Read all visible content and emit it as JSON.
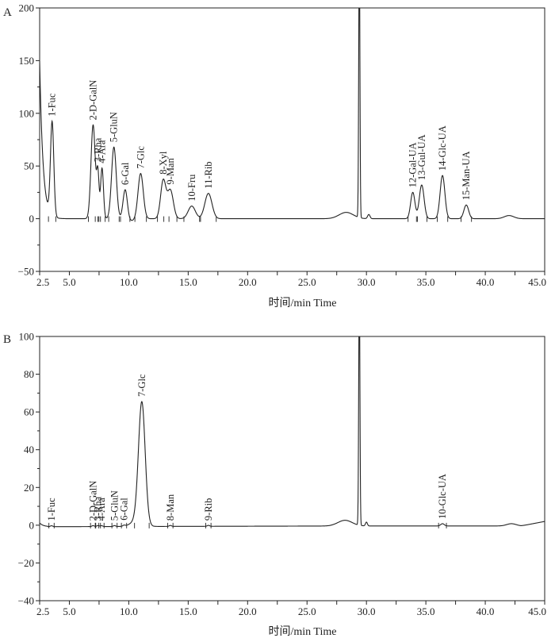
{
  "chart_data": [
    {
      "type": "line",
      "panel_label": "A",
      "xlabel": "时间/min Time",
      "xlim": [
        2.5,
        45.0
      ],
      "ylim": [
        -50,
        200
      ],
      "x_ticks": [
        2.5,
        5.0,
        7.5,
        10.0,
        12.5,
        15.0,
        17.5,
        20.0,
        22.5,
        25.0,
        27.5,
        30.0,
        32.5,
        35.0,
        37.5,
        40.0,
        42.5,
        45.0
      ],
      "x_tick_labels": [
        "2.5",
        "5.0",
        "",
        "10.0",
        "",
        "15.0",
        "",
        "20.0",
        "",
        "25.0",
        "",
        "30.0",
        "",
        "35.0",
        "",
        "40.0",
        "",
        "45.0"
      ],
      "y_ticks": [
        -50,
        0,
        50,
        100,
        150,
        200
      ],
      "y_tick_labels": [
        "−50",
        "0",
        "50",
        "100",
        "150",
        "200"
      ],
      "baseline": 0,
      "system_peak": {
        "x": 29.4,
        "y": 200,
        "width": 0.05
      },
      "peaks": [
        {
          "label": "1-Fuc",
          "x": 3.55,
          "y": 89,
          "width": 0.14
        },
        {
          "label": "2-D-GalN",
          "x": 7.0,
          "y": 89,
          "width": 0.18
        },
        {
          "label": "3-Rha",
          "x": 7.4,
          "y": 41,
          "width": 0.1
        },
        {
          "label": "4-Ara",
          "x": 7.75,
          "y": 48,
          "width": 0.12
        },
        {
          "label": "5-GluN",
          "x": 8.75,
          "y": 68,
          "width": 0.2
        },
        {
          "label": "6-Gal",
          "x": 9.7,
          "y": 28,
          "width": 0.18
        },
        {
          "label": "7-Glc",
          "x": 11.0,
          "y": 43,
          "width": 0.22
        },
        {
          "label": "8-Xyl",
          "x": 12.9,
          "y": 36,
          "width": 0.22
        },
        {
          "label": "9-Man",
          "x": 13.5,
          "y": 27,
          "width": 0.25
        },
        {
          "label": "10-Fru",
          "x": 15.3,
          "y": 12,
          "width": 0.3
        },
        {
          "label": "11-Rib",
          "x": 16.7,
          "y": 24,
          "width": 0.3
        },
        {
          "label": "12-Gal-UA",
          "x": 33.9,
          "y": 25,
          "width": 0.18
        },
        {
          "label": "13-Gul-UA",
          "x": 34.65,
          "y": 32,
          "width": 0.2
        },
        {
          "label": "14-Glc-UA",
          "x": 36.4,
          "y": 41,
          "width": 0.2
        },
        {
          "label": "15-Man-UA",
          "x": 38.4,
          "y": 13,
          "width": 0.2
        }
      ]
    },
    {
      "type": "line",
      "panel_label": "B",
      "xlabel": "时间/min Time",
      "xlim": [
        2.5,
        45.0
      ],
      "ylim": [
        -40,
        100
      ],
      "x_ticks": [
        2.5,
        5.0,
        7.5,
        10.0,
        12.5,
        15.0,
        17.5,
        20.0,
        22.5,
        25.0,
        27.5,
        30.0,
        32.5,
        35.0,
        37.5,
        40.0,
        42.5,
        45.0
      ],
      "x_tick_labels": [
        "2.5",
        "5.0",
        "",
        "10.0",
        "",
        "15.0",
        "",
        "20.0",
        "",
        "25.0",
        "",
        "30.0",
        "",
        "35.0",
        "",
        "40.0",
        "",
        "45.0"
      ],
      "y_ticks": [
        -40,
        -20,
        0,
        20,
        40,
        60,
        80,
        100
      ],
      "y_tick_labels": [
        "−40",
        "−20",
        "0",
        "20",
        "40",
        "60",
        "80",
        "100"
      ],
      "baseline": 0,
      "system_peak": {
        "x": 29.4,
        "y": 100,
        "width": 0.05
      },
      "peaks": [
        {
          "label": "1-Fuc",
          "x": 3.5,
          "y": 0.5,
          "width": 0.1
        },
        {
          "label": "2-D-GalN",
          "x": 7.0,
          "y": 0.5,
          "width": 0.1
        },
        {
          "label": "3-Rha",
          "x": 7.4,
          "y": 0.5,
          "width": 0.1
        },
        {
          "label": "4-Ara",
          "x": 7.7,
          "y": 0.5,
          "width": 0.1
        },
        {
          "label": "5-GluN",
          "x": 8.8,
          "y": 0.5,
          "width": 0.1
        },
        {
          "label": "6-Gal",
          "x": 9.6,
          "y": 0.5,
          "width": 0.1
        },
        {
          "label": "7-Glc",
          "x": 11.1,
          "y": 64,
          "width": 0.28
        },
        {
          "label": "8-Man",
          "x": 13.5,
          "y": 0.5,
          "width": 0.1
        },
        {
          "label": "9-Rib",
          "x": 16.7,
          "y": 0.5,
          "width": 0.1
        },
        {
          "label": "10-Glc-UA",
          "x": 36.4,
          "y": 1.2,
          "width": 0.15
        }
      ]
    }
  ]
}
